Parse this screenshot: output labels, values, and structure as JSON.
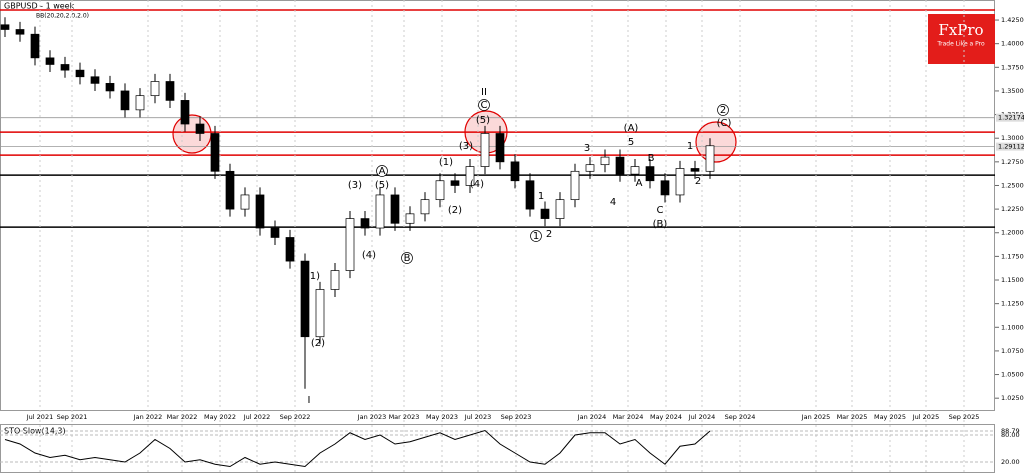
{
  "chart_data": {
    "type": "candlestick",
    "title": "GBPUSD - 1 week",
    "indicator_label": "BB(20,20,2.0,2.0)",
    "logo": "FxPro",
    "logo_tagline": "Trade Like a Pro",
    "open": [
      1.42,
      1.415,
      1.41,
      1.385,
      1.378,
      1.372,
      1.365,
      1.358,
      1.35,
      1.33,
      1.345,
      1.36,
      1.34,
      1.315,
      1.305,
      1.265,
      1.225,
      1.24,
      1.205,
      1.195,
      1.17,
      1.09,
      1.14,
      1.16,
      1.215,
      1.205,
      1.24,
      1.21,
      1.22,
      1.235,
      1.255,
      1.25,
      1.27,
      1.305,
      1.275,
      1.255,
      1.225,
      1.215,
      1.235,
      1.265,
      1.272,
      1.28,
      1.262,
      1.27,
      1.255,
      1.24,
      1.268,
      1.265
    ],
    "high": [
      1.428,
      1.423,
      1.418,
      1.393,
      1.386,
      1.38,
      1.373,
      1.366,
      1.358,
      1.353,
      1.368,
      1.368,
      1.348,
      1.323,
      1.313,
      1.273,
      1.248,
      1.248,
      1.213,
      1.203,
      1.178,
      1.148,
      1.168,
      1.223,
      1.223,
      1.248,
      1.248,
      1.228,
      1.243,
      1.263,
      1.263,
      1.278,
      1.313,
      1.313,
      1.283,
      1.263,
      1.233,
      1.243,
      1.273,
      1.28,
      1.288,
      1.288,
      1.278,
      1.278,
      1.263,
      1.276,
      1.276,
      1.3
    ],
    "low": [
      1.407,
      1.402,
      1.377,
      1.37,
      1.364,
      1.357,
      1.35,
      1.342,
      1.322,
      1.322,
      1.337,
      1.332,
      1.307,
      1.297,
      1.257,
      1.217,
      1.217,
      1.197,
      1.187,
      1.162,
      1.035,
      1.082,
      1.132,
      1.152,
      1.197,
      1.197,
      1.202,
      1.202,
      1.212,
      1.227,
      1.242,
      1.242,
      1.262,
      1.267,
      1.247,
      1.217,
      1.207,
      1.207,
      1.227,
      1.257,
      1.264,
      1.254,
      1.254,
      1.247,
      1.232,
      1.232,
      1.257,
      1.257
    ],
    "close": [
      1.415,
      1.41,
      1.385,
      1.378,
      1.372,
      1.365,
      1.358,
      1.35,
      1.33,
      1.345,
      1.36,
      1.34,
      1.315,
      1.305,
      1.265,
      1.225,
      1.24,
      1.205,
      1.195,
      1.17,
      1.09,
      1.14,
      1.16,
      1.215,
      1.205,
      1.24,
      1.21,
      1.22,
      1.235,
      1.255,
      1.25,
      1.27,
      1.305,
      1.275,
      1.255,
      1.225,
      1.215,
      1.235,
      1.265,
      1.272,
      1.28,
      1.262,
      1.27,
      1.255,
      1.24,
      1.268,
      1.265,
      1.292
    ],
    "up_color": "#ffffff",
    "down_color": "#000000",
    "ylim": [
      1.0125,
      1.4462
    ],
    "yticks": [
      {
        "value": 1.025,
        "label": "1.02500"
      },
      {
        "value": 1.05,
        "label": "1.05000"
      },
      {
        "value": 1.075,
        "label": "1.07500"
      },
      {
        "value": 1.1,
        "label": "1.10000"
      },
      {
        "value": 1.125,
        "label": "1.12500"
      },
      {
        "value": 1.15,
        "label": "1.15000"
      },
      {
        "value": 1.175,
        "label": "1.17500"
      },
      {
        "value": 1.2,
        "label": "1.20000"
      },
      {
        "value": 1.225,
        "label": "1.22500"
      },
      {
        "value": 1.25,
        "label": "1.25000"
      },
      {
        "value": 1.275,
        "label": "1.27500"
      },
      {
        "value": 1.3,
        "label": "1.30000"
      },
      {
        "value": 1.325,
        "label": "1.32500"
      },
      {
        "value": 1.35,
        "label": "1.35000"
      },
      {
        "value": 1.375,
        "label": "1.37500"
      },
      {
        "value": 1.4,
        "label": "1.40000"
      },
      {
        "value": 1.425,
        "label": "1.42500"
      }
    ],
    "levels": [
      {
        "value": 1.4356,
        "color": "#e00000"
      },
      {
        "value": 1.3065,
        "color": "#e00000"
      },
      {
        "value": 1.2821,
        "color": "#e00000"
      },
      {
        "value": 1.261,
        "color": "#000000"
      },
      {
        "value": 1.206,
        "color": "#000000"
      },
      {
        "value": 1.3217,
        "color": "#999999",
        "label": "1.32174"
      },
      {
        "value": 1.2911,
        "color": "#999999",
        "label": "1.29112"
      }
    ],
    "time_labels": [
      "Jul 2021",
      "Sep 2021",
      "Jan 2022",
      "Mar 2022",
      "May 2022",
      "Jul 2022",
      "Sep 2022",
      "Jan 2023",
      "Mar 2023",
      "May 2023",
      "Jul 2023",
      "Sep 2023",
      "Jan 2024",
      "Mar 2024",
      "May 2024",
      "Jul 2024",
      "Sep 2024",
      "Jan 2025",
      "Mar 2025",
      "May 2025",
      "Jul 2025",
      "Sep 2025"
    ],
    "annotations": [
      "I",
      "II",
      "(1)",
      "(2)",
      "(3)",
      "(4)",
      "(5)",
      "A",
      "B",
      "(1)",
      "(2)",
      "(3)",
      "(4)",
      "(5)",
      "C",
      "1",
      "2",
      "1",
      "3",
      "4",
      "5",
      "(A)",
      "A",
      "B",
      "C",
      "(B)",
      "1",
      "2",
      "(C)",
      "2"
    ],
    "oscillator": {
      "label": "STO Slow(14,3)",
      "values": [
        70,
        60,
        40,
        30,
        35,
        25,
        30,
        25,
        20,
        40,
        70,
        50,
        20,
        25,
        15,
        10,
        30,
        15,
        20,
        15,
        10,
        40,
        60,
        85,
        70,
        80,
        60,
        65,
        75,
        85,
        70,
        80,
        90,
        60,
        40,
        20,
        15,
        40,
        80,
        85,
        85,
        60,
        70,
        40,
        15,
        55,
        60,
        88.79
      ],
      "color": "#000000",
      "ylim": [
        0,
        100
      ],
      "yticks": [
        {
          "value": 20,
          "label": "20.00"
        },
        {
          "value": 80,
          "label": "80.00"
        },
        {
          "value": 88.79,
          "label": "88.79"
        }
      ]
    }
  }
}
